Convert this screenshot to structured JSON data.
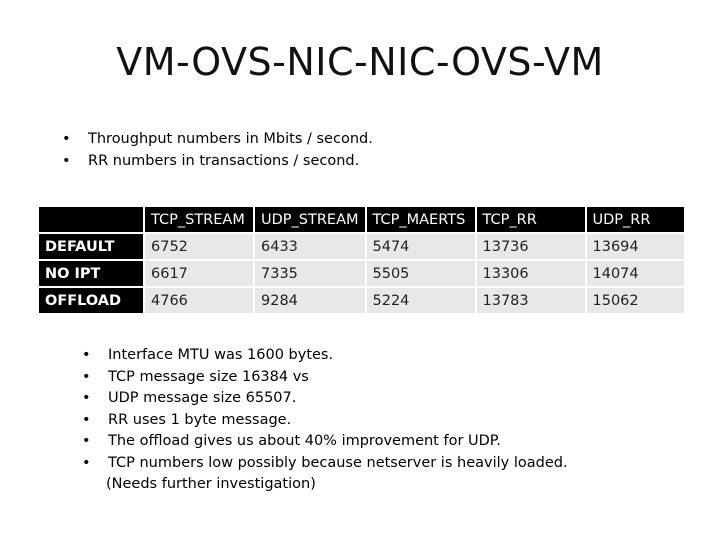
{
  "slide": {
    "title": "VM-OVS-NIC-NIC-OVS-VM",
    "top_bullets": [
      "Throughput numbers in Mbits / second.",
      "RR numbers in transactions / second."
    ],
    "table": {
      "headers": [
        "",
        "TCP_STREAM",
        "UDP_STREAM",
        "TCP_MAERTS",
        "TCP_RR",
        "UDP_RR"
      ],
      "rows": [
        {
          "label": "DEFAULT",
          "values": [
            "6752",
            "6433",
            "5474",
            "13736",
            "13694"
          ]
        },
        {
          "label": "NO IPT",
          "values": [
            "6617",
            "7335",
            "5505",
            "13306",
            "14074"
          ]
        },
        {
          "label": "OFFLOAD",
          "values": [
            "4766",
            "9284",
            "5224",
            "13783",
            "15062"
          ]
        }
      ]
    },
    "bottom_bullets": [
      "Interface MTU was 1600 bytes.",
      "TCP message size 16384 vs",
      "UDP message size 65507.",
      "RR uses 1 byte message.",
      "The offload gives us about 40% improvement for UDP.",
      "TCP numbers low possibly because netserver is heavily loaded."
    ],
    "bottom_note": "(Needs further investigation)",
    "bullet_symbol": "•"
  }
}
